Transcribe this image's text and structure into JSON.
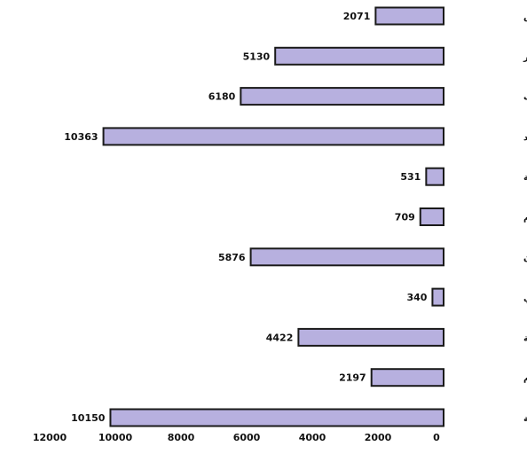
{
  "chart_data": {
    "type": "bar",
    "orientation": "horizontal",
    "x_direction": "reversed",
    "categories": [
      "معلمين . طرابلس",
      "معلمين جنزور",
      "الآداب",
      "الاقتصاد",
      "التربية البدنية",
      "الفنون والإعلام",
      "القانون",
      "الطب البيطري",
      "الزراعة",
      "العلوم",
      "الهندسة"
    ],
    "values": [
      2071,
      5130,
      6180,
      10363,
      531,
      709,
      5876,
      340,
      4422,
      2197,
      10150
    ],
    "x_ticks": [
      12000,
      10000,
      8000,
      6000,
      4000,
      2000,
      0
    ],
    "xlim": [
      0,
      12000
    ],
    "bar_color": "#b7b0df",
    "grid": false,
    "legend": "none",
    "title": "",
    "xlabel": "",
    "ylabel": ""
  }
}
